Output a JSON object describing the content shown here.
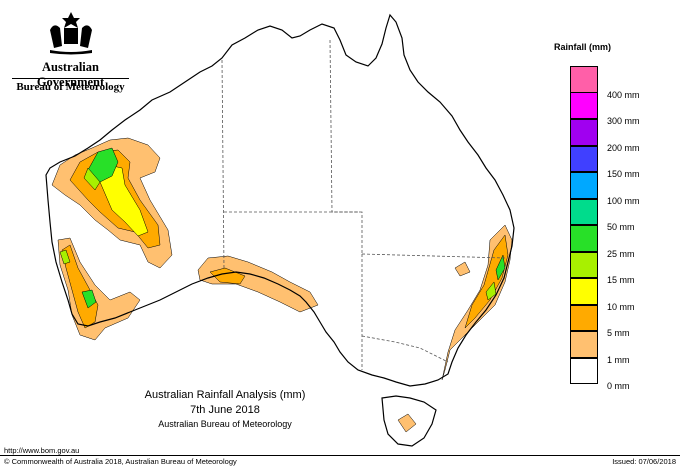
{
  "branding": {
    "government": "Australian Government",
    "bureau": "Bureau of Meteorology"
  },
  "legend": {
    "title": "Rainfall (mm)",
    "bins": [
      {
        "label": "",
        "color": "#ff5fa8"
      },
      {
        "label": "400 mm",
        "color": "#ff00ff"
      },
      {
        "label": "300 mm",
        "color": "#a000f0"
      },
      {
        "label": "200 mm",
        "color": "#4040ff"
      },
      {
        "label": "150 mm",
        "color": "#00a8ff"
      },
      {
        "label": "100 mm",
        "color": "#00dc8c"
      },
      {
        "label": "50 mm",
        "color": "#28e028"
      },
      {
        "label": "25 mm",
        "color": "#a8f000"
      },
      {
        "label": "15 mm",
        "color": "#ffff00"
      },
      {
        "label": "10 mm",
        "color": "#ffaa00"
      },
      {
        "label": "5 mm",
        "color": "#ffc070"
      },
      {
        "label": "1 mm",
        "color": "#ffffff"
      },
      {
        "label": "0 mm",
        "color": ""
      }
    ]
  },
  "title": {
    "line1": "Australian Rainfall Analysis (mm)",
    "line2": "7th June 2018",
    "line3": "Australian Bureau of Meteorology"
  },
  "footer": {
    "url": "http://www.bom.gov.au",
    "copyright": "© Commonwealth of Australia 2018, Australian Bureau of Meteorology",
    "issued": "Issued: 07/06/2018"
  },
  "colors": {
    "coast": "#000000",
    "borders": "#555555",
    "rain_1mm": "#ffc070",
    "rain_5mm": "#ffaa00",
    "rain_10mm": "#ffff00",
    "rain_15mm": "#a8f000",
    "rain_25mm": "#28e028"
  }
}
